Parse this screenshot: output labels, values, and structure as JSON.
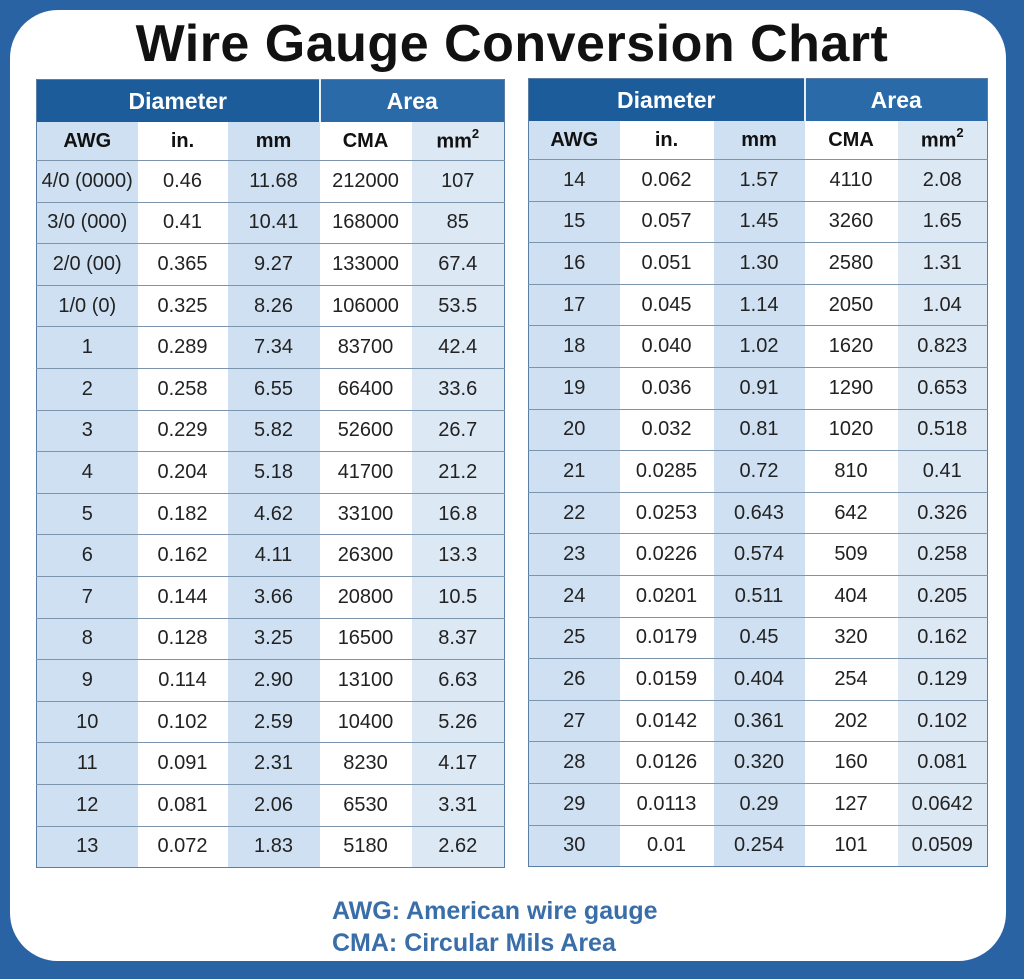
{
  "title": "Wire Gauge Conversion Chart",
  "headers": {
    "group_diameter": "Diameter",
    "group_area": "Area",
    "awg": "AWG",
    "in": "in.",
    "mm": "mm",
    "cma": "CMA",
    "mm2_base": "mm",
    "mm2_sup": "2"
  },
  "legend": {
    "awg": "AWG: American wire gauge",
    "cma": "CMA: Circular Mils Area"
  },
  "colors": {
    "frame_border": "#2a63a3",
    "header_diameter": "#1d5c9a",
    "header_area": "#2a6aa9",
    "shaded_column": "#cfe0f2",
    "legend_text": "#3a6ea8"
  },
  "chart_data": {
    "type": "table",
    "title": "Wire Gauge Conversion Chart",
    "columns": [
      "AWG",
      "Diameter in.",
      "Diameter mm",
      "Area CMA",
      "Area mm2"
    ],
    "left_table": [
      [
        "4/0 (0000)",
        "0.46",
        "11.68",
        "212000",
        "107"
      ],
      [
        "3/0 (000)",
        "0.41",
        "10.41",
        "168000",
        "85"
      ],
      [
        "2/0 (00)",
        "0.365",
        "9.27",
        "133000",
        "67.4"
      ],
      [
        "1/0 (0)",
        "0.325",
        "8.26",
        "106000",
        "53.5"
      ],
      [
        "1",
        "0.289",
        "7.34",
        "83700",
        "42.4"
      ],
      [
        "2",
        "0.258",
        "6.55",
        "66400",
        "33.6"
      ],
      [
        "3",
        "0.229",
        "5.82",
        "52600",
        "26.7"
      ],
      [
        "4",
        "0.204",
        "5.18",
        "41700",
        "21.2"
      ],
      [
        "5",
        "0.182",
        "4.62",
        "33100",
        "16.8"
      ],
      [
        "6",
        "0.162",
        "4.11",
        "26300",
        "13.3"
      ],
      [
        "7",
        "0.144",
        "3.66",
        "20800",
        "10.5"
      ],
      [
        "8",
        "0.128",
        "3.25",
        "16500",
        "8.37"
      ],
      [
        "9",
        "0.114",
        "2.90",
        "13100",
        "6.63"
      ],
      [
        "10",
        "0.102",
        "2.59",
        "10400",
        "5.26"
      ],
      [
        "11",
        "0.091",
        "2.31",
        "8230",
        "4.17"
      ],
      [
        "12",
        "0.081",
        "2.06",
        "6530",
        "3.31"
      ],
      [
        "13",
        "0.072",
        "1.83",
        "5180",
        "2.62"
      ]
    ],
    "right_table": [
      [
        "14",
        "0.062",
        "1.57",
        "4110",
        "2.08"
      ],
      [
        "15",
        "0.057",
        "1.45",
        "3260",
        "1.65"
      ],
      [
        "16",
        "0.051",
        "1.30",
        "2580",
        "1.31"
      ],
      [
        "17",
        "0.045",
        "1.14",
        "2050",
        "1.04"
      ],
      [
        "18",
        "0.040",
        "1.02",
        "1620",
        "0.823"
      ],
      [
        "19",
        "0.036",
        "0.91",
        "1290",
        "0.653"
      ],
      [
        "20",
        "0.032",
        "0.81",
        "1020",
        "0.518"
      ],
      [
        "21",
        "0.0285",
        "0.72",
        "810",
        "0.41"
      ],
      [
        "22",
        "0.0253",
        "0.643",
        "642",
        "0.326"
      ],
      [
        "23",
        "0.0226",
        "0.574",
        "509",
        "0.258"
      ],
      [
        "24",
        "0.0201",
        "0.511",
        "404",
        "0.205"
      ],
      [
        "25",
        "0.0179",
        "0.45",
        "320",
        "0.162"
      ],
      [
        "26",
        "0.0159",
        "0.404",
        "254",
        "0.129"
      ],
      [
        "27",
        "0.0142",
        "0.361",
        "202",
        "0.102"
      ],
      [
        "28",
        "0.0126",
        "0.320",
        "160",
        "0.081"
      ],
      [
        "29",
        "0.0113",
        "0.29",
        "127",
        "0.0642"
      ],
      [
        "30",
        "0.01",
        "0.254",
        "101",
        "0.0509"
      ]
    ]
  }
}
